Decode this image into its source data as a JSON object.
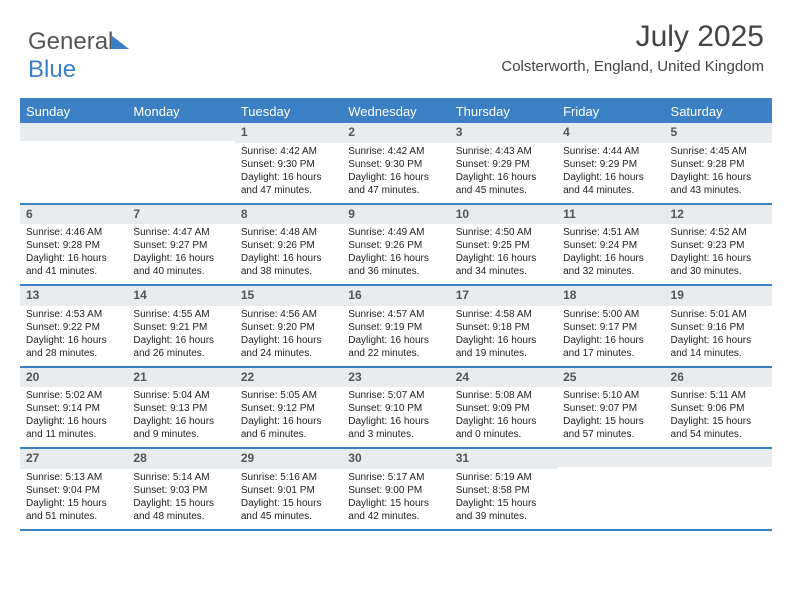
{
  "brand": {
    "part1": "General",
    "part2": "Blue"
  },
  "title": "July 2025",
  "location": "Colsterworth, England, United Kingdom",
  "colors": {
    "header_bg": "#3b7fc4",
    "daynum_bg": "#e8ecef",
    "text": "#333",
    "background": "#ffffff"
  },
  "font": {
    "title_pt": 30,
    "location_pt": 15,
    "header_pt": 13,
    "daynum_pt": 12,
    "body_pt": 10
  },
  "day_names": [
    "Sunday",
    "Monday",
    "Tuesday",
    "Wednesday",
    "Thursday",
    "Friday",
    "Saturday"
  ],
  "weeks": [
    [
      {
        "n": "",
        "sunrise": "",
        "sunset": "",
        "daylight": ""
      },
      {
        "n": "",
        "sunrise": "",
        "sunset": "",
        "daylight": ""
      },
      {
        "n": "1",
        "sunrise": "Sunrise: 4:42 AM",
        "sunset": "Sunset: 9:30 PM",
        "daylight": "Daylight: 16 hours and 47 minutes."
      },
      {
        "n": "2",
        "sunrise": "Sunrise: 4:42 AM",
        "sunset": "Sunset: 9:30 PM",
        "daylight": "Daylight: 16 hours and 47 minutes."
      },
      {
        "n": "3",
        "sunrise": "Sunrise: 4:43 AM",
        "sunset": "Sunset: 9:29 PM",
        "daylight": "Daylight: 16 hours and 45 minutes."
      },
      {
        "n": "4",
        "sunrise": "Sunrise: 4:44 AM",
        "sunset": "Sunset: 9:29 PM",
        "daylight": "Daylight: 16 hours and 44 minutes."
      },
      {
        "n": "5",
        "sunrise": "Sunrise: 4:45 AM",
        "sunset": "Sunset: 9:28 PM",
        "daylight": "Daylight: 16 hours and 43 minutes."
      }
    ],
    [
      {
        "n": "6",
        "sunrise": "Sunrise: 4:46 AM",
        "sunset": "Sunset: 9:28 PM",
        "daylight": "Daylight: 16 hours and 41 minutes."
      },
      {
        "n": "7",
        "sunrise": "Sunrise: 4:47 AM",
        "sunset": "Sunset: 9:27 PM",
        "daylight": "Daylight: 16 hours and 40 minutes."
      },
      {
        "n": "8",
        "sunrise": "Sunrise: 4:48 AM",
        "sunset": "Sunset: 9:26 PM",
        "daylight": "Daylight: 16 hours and 38 minutes."
      },
      {
        "n": "9",
        "sunrise": "Sunrise: 4:49 AM",
        "sunset": "Sunset: 9:26 PM",
        "daylight": "Daylight: 16 hours and 36 minutes."
      },
      {
        "n": "10",
        "sunrise": "Sunrise: 4:50 AM",
        "sunset": "Sunset: 9:25 PM",
        "daylight": "Daylight: 16 hours and 34 minutes."
      },
      {
        "n": "11",
        "sunrise": "Sunrise: 4:51 AM",
        "sunset": "Sunset: 9:24 PM",
        "daylight": "Daylight: 16 hours and 32 minutes."
      },
      {
        "n": "12",
        "sunrise": "Sunrise: 4:52 AM",
        "sunset": "Sunset: 9:23 PM",
        "daylight": "Daylight: 16 hours and 30 minutes."
      }
    ],
    [
      {
        "n": "13",
        "sunrise": "Sunrise: 4:53 AM",
        "sunset": "Sunset: 9:22 PM",
        "daylight": "Daylight: 16 hours and 28 minutes."
      },
      {
        "n": "14",
        "sunrise": "Sunrise: 4:55 AM",
        "sunset": "Sunset: 9:21 PM",
        "daylight": "Daylight: 16 hours and 26 minutes."
      },
      {
        "n": "15",
        "sunrise": "Sunrise: 4:56 AM",
        "sunset": "Sunset: 9:20 PM",
        "daylight": "Daylight: 16 hours and 24 minutes."
      },
      {
        "n": "16",
        "sunrise": "Sunrise: 4:57 AM",
        "sunset": "Sunset: 9:19 PM",
        "daylight": "Daylight: 16 hours and 22 minutes."
      },
      {
        "n": "17",
        "sunrise": "Sunrise: 4:58 AM",
        "sunset": "Sunset: 9:18 PM",
        "daylight": "Daylight: 16 hours and 19 minutes."
      },
      {
        "n": "18",
        "sunrise": "Sunrise: 5:00 AM",
        "sunset": "Sunset: 9:17 PM",
        "daylight": "Daylight: 16 hours and 17 minutes."
      },
      {
        "n": "19",
        "sunrise": "Sunrise: 5:01 AM",
        "sunset": "Sunset: 9:16 PM",
        "daylight": "Daylight: 16 hours and 14 minutes."
      }
    ],
    [
      {
        "n": "20",
        "sunrise": "Sunrise: 5:02 AM",
        "sunset": "Sunset: 9:14 PM",
        "daylight": "Daylight: 16 hours and 11 minutes."
      },
      {
        "n": "21",
        "sunrise": "Sunrise: 5:04 AM",
        "sunset": "Sunset: 9:13 PM",
        "daylight": "Daylight: 16 hours and 9 minutes."
      },
      {
        "n": "22",
        "sunrise": "Sunrise: 5:05 AM",
        "sunset": "Sunset: 9:12 PM",
        "daylight": "Daylight: 16 hours and 6 minutes."
      },
      {
        "n": "23",
        "sunrise": "Sunrise: 5:07 AM",
        "sunset": "Sunset: 9:10 PM",
        "daylight": "Daylight: 16 hours and 3 minutes."
      },
      {
        "n": "24",
        "sunrise": "Sunrise: 5:08 AM",
        "sunset": "Sunset: 9:09 PM",
        "daylight": "Daylight: 16 hours and 0 minutes."
      },
      {
        "n": "25",
        "sunrise": "Sunrise: 5:10 AM",
        "sunset": "Sunset: 9:07 PM",
        "daylight": "Daylight: 15 hours and 57 minutes."
      },
      {
        "n": "26",
        "sunrise": "Sunrise: 5:11 AM",
        "sunset": "Sunset: 9:06 PM",
        "daylight": "Daylight: 15 hours and 54 minutes."
      }
    ],
    [
      {
        "n": "27",
        "sunrise": "Sunrise: 5:13 AM",
        "sunset": "Sunset: 9:04 PM",
        "daylight": "Daylight: 15 hours and 51 minutes."
      },
      {
        "n": "28",
        "sunrise": "Sunrise: 5:14 AM",
        "sunset": "Sunset: 9:03 PM",
        "daylight": "Daylight: 15 hours and 48 minutes."
      },
      {
        "n": "29",
        "sunrise": "Sunrise: 5:16 AM",
        "sunset": "Sunset: 9:01 PM",
        "daylight": "Daylight: 15 hours and 45 minutes."
      },
      {
        "n": "30",
        "sunrise": "Sunrise: 5:17 AM",
        "sunset": "Sunset: 9:00 PM",
        "daylight": "Daylight: 15 hours and 42 minutes."
      },
      {
        "n": "31",
        "sunrise": "Sunrise: 5:19 AM",
        "sunset": "Sunset: 8:58 PM",
        "daylight": "Daylight: 15 hours and 39 minutes."
      },
      {
        "n": "",
        "sunrise": "",
        "sunset": "",
        "daylight": ""
      },
      {
        "n": "",
        "sunrise": "",
        "sunset": "",
        "daylight": ""
      }
    ]
  ]
}
